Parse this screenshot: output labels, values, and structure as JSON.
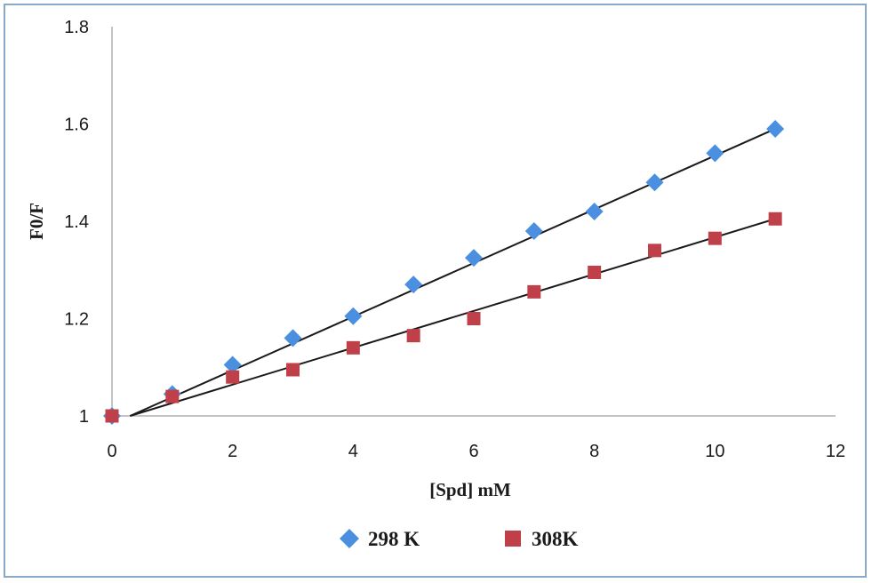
{
  "chart_data": {
    "type": "scatter",
    "title": "",
    "xlabel": "[Spd]  mM",
    "ylabel": "F0/F",
    "xlim": [
      0,
      12
    ],
    "ylim": [
      1,
      1.8
    ],
    "x_ticks": [
      "0",
      "2",
      "4",
      "6",
      "8",
      "10",
      "12"
    ],
    "y_ticks": [
      "1",
      "1.2",
      "1.4",
      "1.6",
      "1.8"
    ],
    "grid": false,
    "legend_position": "bottom",
    "series": [
      {
        "name": "298 K",
        "marker": "diamond",
        "color": "#4a8fe0",
        "x": [
          0,
          1,
          2,
          3,
          4,
          5,
          6,
          7,
          8,
          9,
          10,
          11
        ],
        "y": [
          1.0,
          1.045,
          1.105,
          1.16,
          1.205,
          1.27,
          1.325,
          1.38,
          1.42,
          1.48,
          1.54,
          1.59
        ],
        "trendline": {
          "x": [
            0.3,
            11
          ],
          "y": [
            1.0,
            1.59
          ]
        }
      },
      {
        "name": "308K",
        "marker": "square",
        "color": "#c0404a",
        "x": [
          0,
          1,
          2,
          3,
          4,
          5,
          6,
          7,
          8,
          9,
          10,
          11
        ],
        "y": [
          1.0,
          1.04,
          1.08,
          1.095,
          1.14,
          1.165,
          1.2,
          1.255,
          1.295,
          1.34,
          1.365,
          1.405
        ],
        "trendline": {
          "x": [
            0.3,
            11
          ],
          "y": [
            1.0,
            1.405
          ]
        }
      }
    ]
  }
}
